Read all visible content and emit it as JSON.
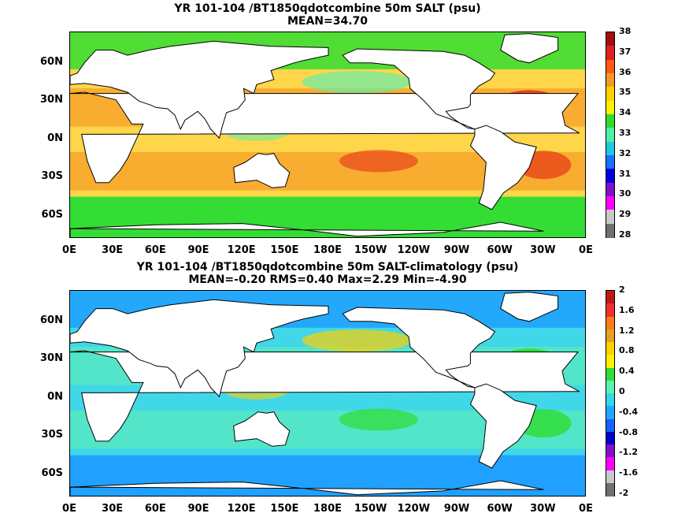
{
  "panels": [
    {
      "title_line1": "YR 101-104 /BT1850qdotcombine 50m SALT (psu)",
      "title_line2": "MEAN=34.70",
      "colorbar": {
        "labels": [
          "38",
          "37",
          "36",
          "35",
          "34",
          "33",
          "32",
          "31",
          "30",
          "29",
          "28"
        ],
        "colors": [
          "#a01010",
          "#e02020",
          "#ff5a1a",
          "#f59a1e",
          "#ffd000",
          "#fff200",
          "#2ddc2d",
          "#52f0a0",
          "#20c8e0",
          "#1870ff",
          "#0000dd",
          "#8010c8",
          "#ff00ff",
          "#c8c8c8",
          "#707070"
        ]
      },
      "ocean_colors": {
        "base": "#ffd54a",
        "warm": "#f28c1e",
        "hot": "#e8451a",
        "fresh": "#33dd33",
        "cool": "#66eeaa"
      }
    },
    {
      "title_line1": "YR 101-104 /BT1850qdotcombine 50m SALT-climatology (psu)",
      "title_line2": "MEAN=-0.20   RMS=0.40   Max=2.29   Min=-4.90",
      "colorbar": {
        "labels": [
          "2",
          "1.6",
          "1.2",
          "0.8",
          "0.4",
          "0",
          "-0.4",
          "-0.8",
          "-1.2",
          "-1.6",
          "-2"
        ],
        "colors": [
          "#c01818",
          "#f03030",
          "#ff7a1a",
          "#e8a020",
          "#ffd000",
          "#fff200",
          "#30dd30",
          "#60f0b0",
          "#30d8e8",
          "#20a8ff",
          "#1860ff",
          "#0000cc",
          "#8010c8",
          "#ff00ff",
          "#c8c8c8",
          "#707070"
        ]
      },
      "ocean_colors": {
        "base": "#40d8e8",
        "warm": "#60f0b0",
        "hot": "#30dd30",
        "fresh": "#20a0ff",
        "cool": "#ffd000"
      }
    }
  ],
  "axes": {
    "lat_labels": [
      "60N",
      "30N",
      "0N",
      "30S",
      "60S"
    ],
    "lon_labels": [
      "0E",
      "30E",
      "60E",
      "90E",
      "120E",
      "150E",
      "180E",
      "150W",
      "120W",
      "90W",
      "60W",
      "30W",
      "0E"
    ]
  }
}
